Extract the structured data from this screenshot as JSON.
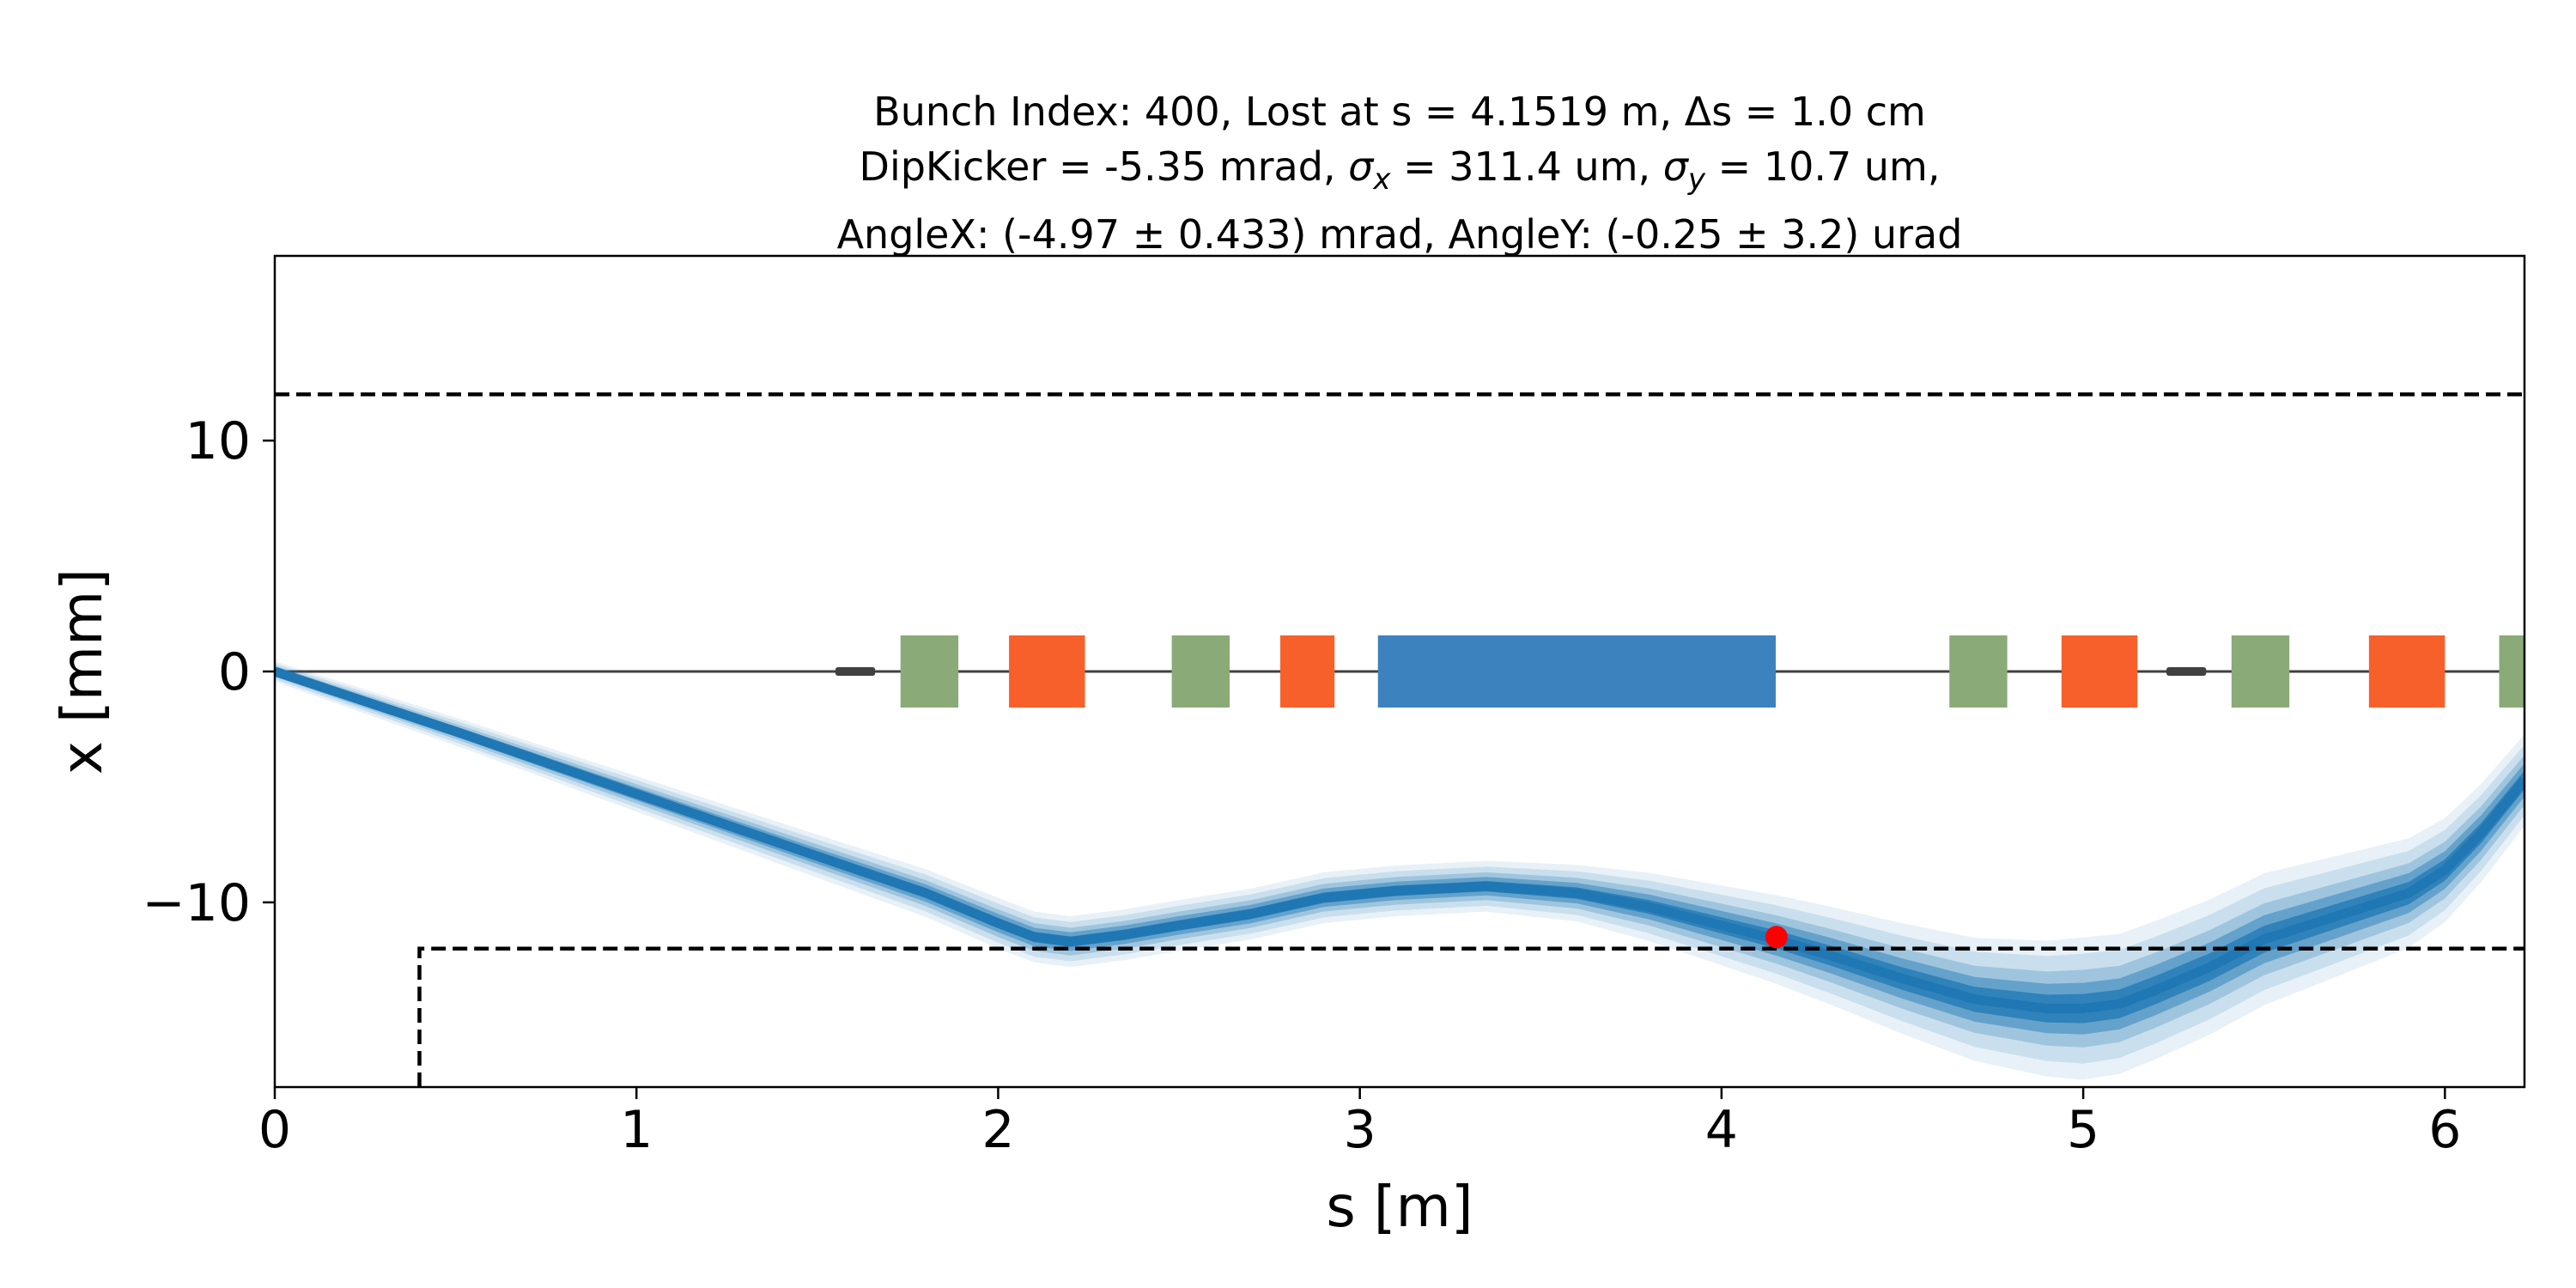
{
  "chart_data": {
    "type": "line",
    "title_lines": [
      "Bunch Index: 400, Lost at s = 4.1519 m, Δs = 1.0 cm",
      "DipKicker = -5.35 mrad, σx = 311.4 um, σy = 10.7 um,",
      "AngleX: (-4.97 ± 0.433) mrad, AngleY: (-0.25 ± 3.2) urad"
    ],
    "title_parts": {
      "l2a": "DipKicker = -5.35 mrad, ",
      "sx": "σ",
      "sx_sub": "x",
      "l2b": " = 311.4 um, ",
      "sy": "σ",
      "sy_sub": "y",
      "l2c": " = 10.7 um,"
    },
    "xlabel": "s [m]",
    "ylabel": "x [mm]",
    "xlim": [
      0,
      6.22
    ],
    "ylim": [
      -18,
      18
    ],
    "x_ticks": [
      0,
      1,
      2,
      3,
      4,
      5,
      6
    ],
    "y_ticks": [
      10,
      0,
      -10
    ],
    "y_tick_labels": [
      "10",
      "0",
      "−10"
    ],
    "aperture": {
      "upper": [
        [
          0,
          12
        ],
        [
          6.22,
          12
        ]
      ],
      "lower": [
        [
          0.4,
          -18
        ],
        [
          0.4,
          -12
        ],
        [
          6.22,
          -12
        ]
      ]
    },
    "beam_centroid": {
      "s": [
        0,
        0.5,
        1.0,
        1.5,
        1.8,
        2.0,
        2.1,
        2.2,
        2.35,
        2.5,
        2.7,
        2.9,
        3.1,
        3.35,
        3.6,
        3.8,
        4.0,
        4.15,
        4.3,
        4.5,
        4.7,
        4.9,
        5.0,
        5.1,
        5.2,
        5.35,
        5.5,
        5.7,
        5.9,
        6.0,
        6.1,
        6.22
      ],
      "x": [
        0,
        -2.6,
        -5.3,
        -8.0,
        -9.6,
        -10.9,
        -11.5,
        -11.7,
        -11.4,
        -11.0,
        -10.5,
        -9.8,
        -9.5,
        -9.3,
        -9.6,
        -10.2,
        -11.0,
        -11.6,
        -12.3,
        -13.3,
        -14.2,
        -14.6,
        -14.6,
        -14.4,
        -13.8,
        -12.8,
        -11.6,
        -10.6,
        -9.6,
        -8.6,
        -7.0,
        -4.7
      ]
    },
    "beam_rms_spread_mm": {
      "s": [
        0,
        2.0,
        3.5,
        4.2,
        5.0,
        5.5,
        6.22
      ],
      "half_width": [
        0.2,
        0.5,
        0.5,
        0.9,
        1.4,
        1.3,
        0.9
      ]
    },
    "loss_point": {
      "s": 4.1519,
      "x": -11.5,
      "color": "#ff0000"
    },
    "lattice_elements": [
      {
        "type": "monitor",
        "s_start": 1.55,
        "s_end": 1.66,
        "color": "#404040"
      },
      {
        "type": "quadrupole",
        "s_start": 1.73,
        "s_end": 1.89,
        "color": "#8aab78"
      },
      {
        "type": "corrector",
        "s_start": 2.03,
        "s_end": 2.24,
        "color": "#f8602b"
      },
      {
        "type": "quadrupole",
        "s_start": 2.48,
        "s_end": 2.64,
        "color": "#8aab78"
      },
      {
        "type": "corrector",
        "s_start": 2.78,
        "s_end": 2.93,
        "color": "#f8602b"
      },
      {
        "type": "dipole",
        "s_start": 3.05,
        "s_end": 4.15,
        "color": "#3b82bf"
      },
      {
        "type": "quadrupole",
        "s_start": 4.63,
        "s_end": 4.79,
        "color": "#8aab78"
      },
      {
        "type": "corrector",
        "s_start": 4.94,
        "s_end": 5.15,
        "color": "#f8602b"
      },
      {
        "type": "monitor",
        "s_start": 5.23,
        "s_end": 5.34,
        "color": "#404040"
      },
      {
        "type": "quadrupole",
        "s_start": 5.41,
        "s_end": 5.57,
        "color": "#8aab78"
      },
      {
        "type": "corrector",
        "s_start": 5.79,
        "s_end": 6.0,
        "color": "#f8602b"
      },
      {
        "type": "quadrupole",
        "s_start": 6.15,
        "s_end": 6.22,
        "color": "#8aab78"
      }
    ],
    "colors": {
      "beam": "#1f77b4",
      "aperture": "#000000",
      "axis_line": "#404040"
    },
    "grid": false,
    "legend": "none"
  }
}
